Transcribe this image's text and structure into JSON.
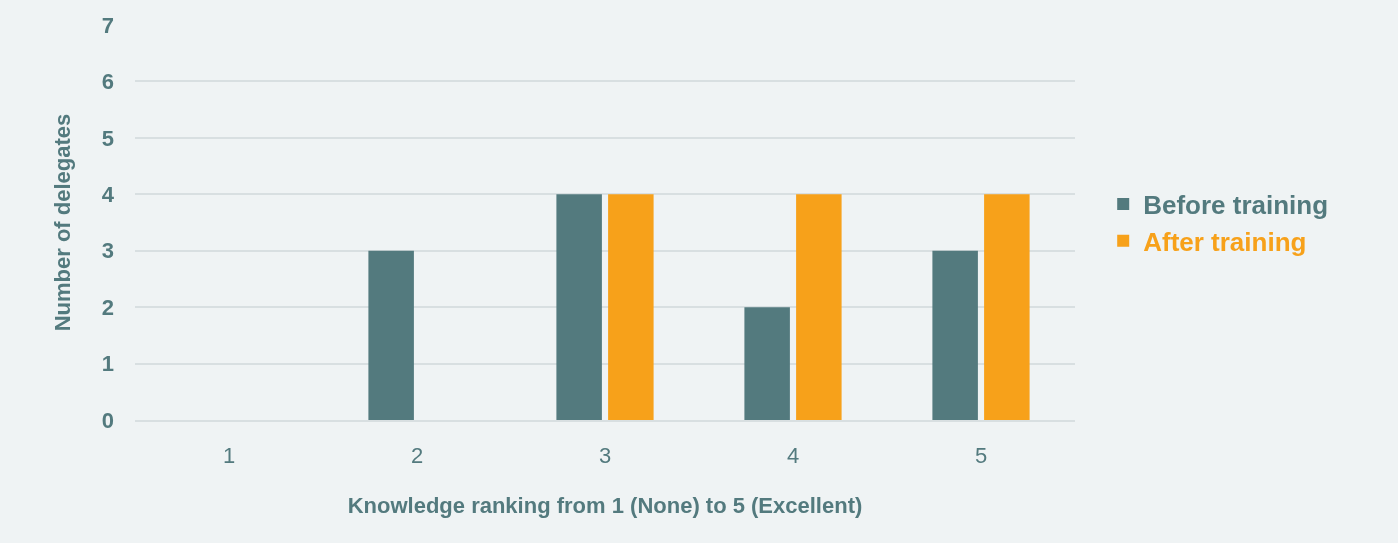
{
  "chart_data": {
    "type": "bar",
    "xlabel": "Knowledge ranking from 1 (None) to 5 (Excellent)",
    "ylabel": "Number of delegates",
    "categories": [
      "1",
      "2",
      "3",
      "4",
      "5"
    ],
    "series": [
      {
        "name": "Before training",
        "color": "#537a7e",
        "values": [
          0,
          3,
          4,
          2,
          3
        ]
      },
      {
        "name": "After training",
        "color": "#f7a11a",
        "values": [
          0,
          0,
          4,
          4,
          4
        ]
      }
    ],
    "ylim": [
      0,
      7
    ],
    "yticks": [
      0,
      1,
      2,
      3,
      4,
      5,
      6,
      7
    ],
    "grid": "y",
    "legend": "right"
  }
}
